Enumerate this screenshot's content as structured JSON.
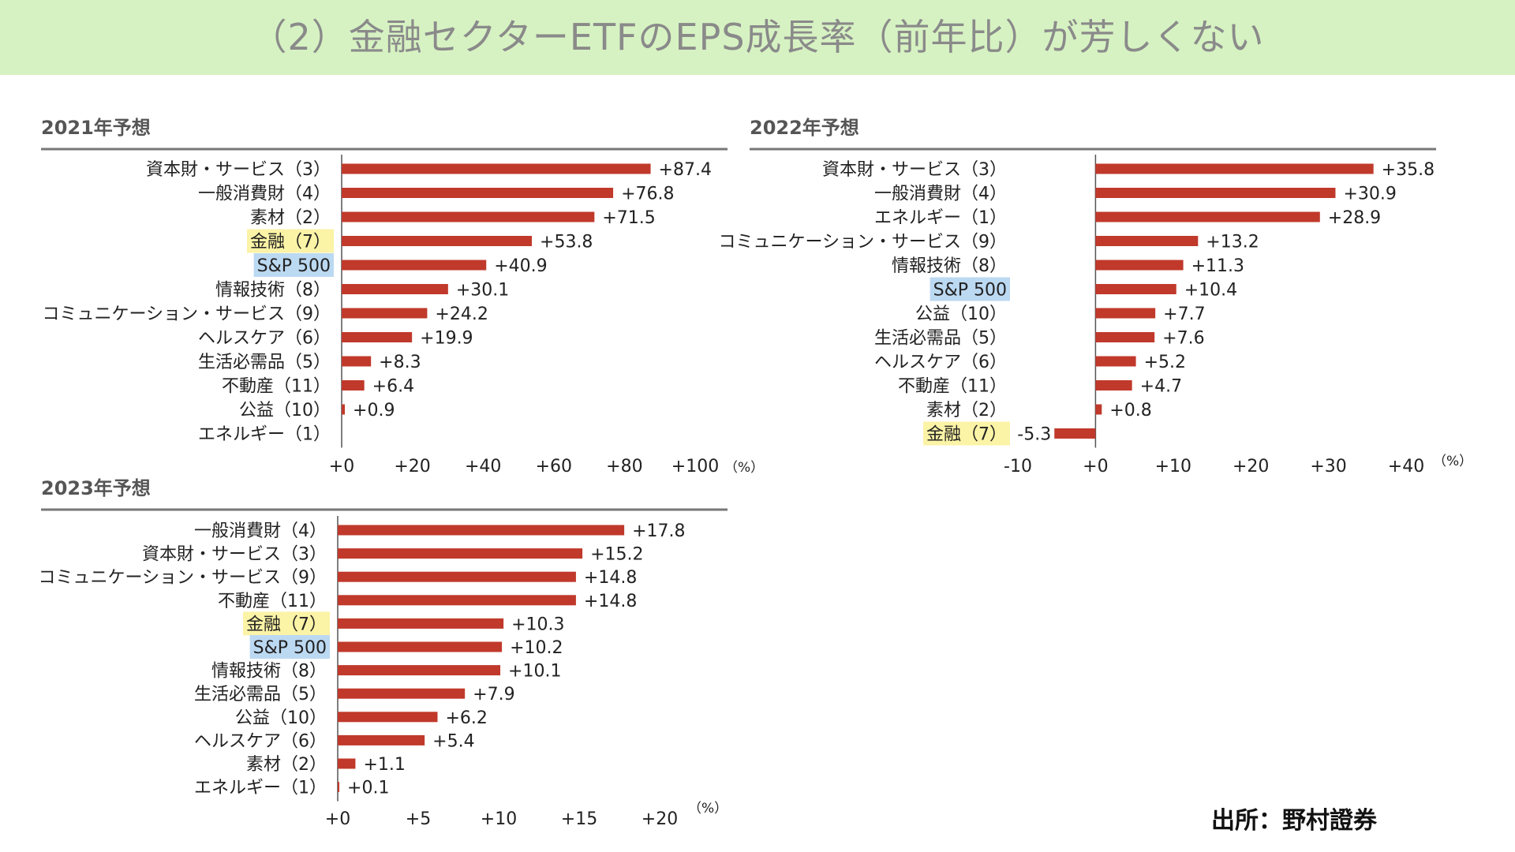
{
  "header": {
    "title": "（2）金融セクターETFのEPS成長率（前年比）が芳しくない"
  },
  "source": "出所：野村證券",
  "colors": {
    "bar": "#c0392b",
    "highlight_finance": "#fbf3a6",
    "highlight_sp500": "#bcd9f2",
    "banner": "#d6f2c2"
  },
  "chart_data": [
    {
      "type": "bar",
      "orientation": "horizontal",
      "title": "2021年予想",
      "unit": "（%）",
      "xlim": [
        0,
        100
      ],
      "ticks": [
        "+0",
        "+20",
        "+40",
        "+60",
        "+80",
        "+100"
      ],
      "tick_values": [
        0,
        20,
        40,
        60,
        80,
        100
      ],
      "categories": [
        "資本財・サービス（3）",
        "一般消費財（4）",
        "素材（2）",
        "金融（7）",
        "S&P 500",
        "情報技術（8）",
        "コミュニケーション・サービス（9）",
        "ヘルスケア（6）",
        "生活必需品（5）",
        "不動産（11）",
        "公益（10）",
        "エネルギー（1）"
      ],
      "values": [
        87.4,
        76.8,
        71.5,
        53.8,
        40.9,
        30.1,
        24.2,
        19.9,
        8.3,
        6.4,
        0.9,
        null
      ],
      "labels": [
        "+87.4",
        "+76.8",
        "+71.5",
        "+53.8",
        "+40.9",
        "+30.1",
        "+24.2",
        "+19.9",
        "+8.3",
        "+6.4",
        "+0.9",
        ""
      ],
      "highlights": {
        "金融（7）": "finance",
        "S&P 500": "sp500"
      }
    },
    {
      "type": "bar",
      "orientation": "horizontal",
      "title": "2022年予想",
      "unit": "（%）",
      "xlim": [
        -10,
        40
      ],
      "ticks": [
        "-10",
        "+0",
        "+10",
        "+20",
        "+30",
        "+40"
      ],
      "tick_values": [
        -10,
        0,
        10,
        20,
        30,
        40
      ],
      "categories": [
        "資本財・サービス（3）",
        "一般消費財（4）",
        "エネルギー（1）",
        "コミュニケーション・サービス（9）",
        "情報技術（8）",
        "S&P 500",
        "公益（10）",
        "生活必需品（5）",
        "ヘルスケア（6）",
        "不動産（11）",
        "素材（2）",
        "金融（7）"
      ],
      "values": [
        35.8,
        30.9,
        28.9,
        13.2,
        11.3,
        10.4,
        7.7,
        7.6,
        5.2,
        4.7,
        0.8,
        -5.3
      ],
      "labels": [
        "+35.8",
        "+30.9",
        "+28.9",
        "+13.2",
        "+11.3",
        "+10.4",
        "+7.7",
        "+7.6",
        "+5.2",
        "+4.7",
        "+0.8",
        "-5.3"
      ],
      "highlights": {
        "金融（7）": "finance",
        "S&P 500": "sp500"
      }
    },
    {
      "type": "bar",
      "orientation": "horizontal",
      "title": "2023年予想",
      "unit": "（%）",
      "xlim": [
        0,
        20
      ],
      "ticks": [
        "+0",
        "+5",
        "+10",
        "+15",
        "+20"
      ],
      "tick_values": [
        0,
        5,
        10,
        15,
        20
      ],
      "categories": [
        "一般消費財（4）",
        "資本財・サービス（3）",
        "コミュニケーション・サービス（9）",
        "不動産（11）",
        "金融（7）",
        "S&P 500",
        "情報技術（8）",
        "生活必需品（5）",
        "公益（10）",
        "ヘルスケア（6）",
        "素材（2）",
        "エネルギー（1）"
      ],
      "values": [
        17.8,
        15.2,
        14.8,
        14.8,
        10.3,
        10.2,
        10.1,
        7.9,
        6.2,
        5.4,
        1.1,
        0.1
      ],
      "labels": [
        "+17.8",
        "+15.2",
        "+14.8",
        "+14.8",
        "+10.3",
        "+10.2",
        "+10.1",
        "+7.9",
        "+6.2",
        "+5.4",
        "+1.1",
        "+0.1"
      ],
      "highlights": {
        "金融（7）": "finance",
        "S&P 500": "sp500"
      }
    }
  ]
}
